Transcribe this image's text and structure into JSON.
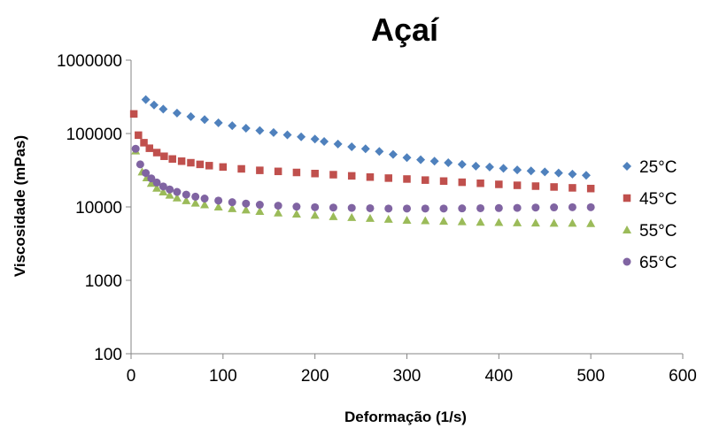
{
  "chart_data": {
    "type": "scatter",
    "title": "Açaí",
    "xlabel": "Deformação (1/s)",
    "ylabel": "Viscosidade (mPas)",
    "xlim": [
      0,
      600
    ],
    "ylim": [
      100,
      1000000
    ],
    "yscale": "log",
    "x_ticks": [
      0,
      100,
      200,
      300,
      400,
      500,
      600
    ],
    "x_tick_labels": [
      "0",
      "100",
      "200",
      "300",
      "400",
      "500",
      "600"
    ],
    "y_ticks": [
      100,
      1000,
      10000,
      100000,
      1000000
    ],
    "y_tick_labels": [
      "100",
      "1000",
      "10000",
      "100000",
      "1000000"
    ],
    "grid": false,
    "legend_position": "right",
    "series": [
      {
        "name": "25°C",
        "color": "#4F81BD",
        "marker": "diamond",
        "points": [
          [
            16,
            290000
          ],
          [
            25,
            245000
          ],
          [
            35,
            215000
          ],
          [
            50,
            190000
          ],
          [
            65,
            170000
          ],
          [
            80,
            155000
          ],
          [
            95,
            140000
          ],
          [
            110,
            128000
          ],
          [
            125,
            118000
          ],
          [
            140,
            110000
          ],
          [
            155,
            103000
          ],
          [
            170,
            96000
          ],
          [
            185,
            90000
          ],
          [
            200,
            84000
          ],
          [
            210,
            78000
          ],
          [
            225,
            72000
          ],
          [
            240,
            66000
          ],
          [
            255,
            62000
          ],
          [
            270,
            57000
          ],
          [
            285,
            52000
          ],
          [
            300,
            47000
          ],
          [
            315,
            44000
          ],
          [
            330,
            42000
          ],
          [
            345,
            40000
          ],
          [
            360,
            38000
          ],
          [
            375,
            36000
          ],
          [
            390,
            35000
          ],
          [
            405,
            33500
          ],
          [
            420,
            32000
          ],
          [
            435,
            31000
          ],
          [
            450,
            30000
          ],
          [
            465,
            29000
          ],
          [
            480,
            28000
          ],
          [
            495,
            27000
          ]
        ]
      },
      {
        "name": "45°C",
        "color": "#C0504D",
        "marker": "square",
        "points": [
          [
            3,
            185000
          ],
          [
            8,
            95000
          ],
          [
            14,
            75000
          ],
          [
            20,
            63000
          ],
          [
            28,
            55000
          ],
          [
            36,
            49000
          ],
          [
            45,
            45000
          ],
          [
            55,
            42000
          ],
          [
            65,
            40000
          ],
          [
            75,
            38000
          ],
          [
            85,
            36500
          ],
          [
            100,
            35000
          ],
          [
            120,
            33000
          ],
          [
            140,
            31500
          ],
          [
            160,
            30500
          ],
          [
            180,
            29500
          ],
          [
            200,
            28500
          ],
          [
            220,
            27500
          ],
          [
            240,
            26500
          ],
          [
            260,
            25500
          ],
          [
            280,
            24700
          ],
          [
            300,
            24000
          ],
          [
            320,
            23200
          ],
          [
            340,
            22500
          ],
          [
            360,
            21700
          ],
          [
            380,
            21000
          ],
          [
            400,
            20300
          ],
          [
            420,
            19700
          ],
          [
            440,
            19200
          ],
          [
            460,
            18700
          ],
          [
            480,
            18200
          ],
          [
            500,
            17800
          ]
        ]
      },
      {
        "name": "55°C",
        "color": "#9BBB59",
        "marker": "triangle",
        "points": [
          [
            5,
            58000
          ],
          [
            12,
            30000
          ],
          [
            17,
            25000
          ],
          [
            22,
            21000
          ],
          [
            28,
            18000
          ],
          [
            35,
            16000
          ],
          [
            42,
            14500
          ],
          [
            50,
            13300
          ],
          [
            60,
            12200
          ],
          [
            70,
            11300
          ],
          [
            80,
            10700
          ],
          [
            95,
            10000
          ],
          [
            110,
            9500
          ],
          [
            125,
            9100
          ],
          [
            140,
            8700
          ],
          [
            160,
            8300
          ],
          [
            180,
            8000
          ],
          [
            200,
            7700
          ],
          [
            220,
            7400
          ],
          [
            240,
            7200
          ],
          [
            260,
            7000
          ],
          [
            280,
            6800
          ],
          [
            300,
            6600
          ],
          [
            320,
            6500
          ],
          [
            340,
            6400
          ],
          [
            360,
            6300
          ],
          [
            380,
            6200
          ],
          [
            400,
            6150
          ],
          [
            420,
            6100
          ],
          [
            440,
            6050
          ],
          [
            460,
            6000
          ],
          [
            480,
            6000
          ],
          [
            500,
            5950
          ]
        ]
      },
      {
        "name": "65°C",
        "color": "#8064A2",
        "marker": "circle",
        "points": [
          [
            5,
            62000
          ],
          [
            10,
            38000
          ],
          [
            16,
            29000
          ],
          [
            22,
            24500
          ],
          [
            28,
            21500
          ],
          [
            35,
            19000
          ],
          [
            42,
            17300
          ],
          [
            50,
            16000
          ],
          [
            60,
            14700
          ],
          [
            70,
            13800
          ],
          [
            80,
            13000
          ],
          [
            95,
            12200
          ],
          [
            110,
            11600
          ],
          [
            125,
            11100
          ],
          [
            140,
            10700
          ],
          [
            160,
            10400
          ],
          [
            180,
            10100
          ],
          [
            200,
            9900
          ],
          [
            220,
            9800
          ],
          [
            240,
            9700
          ],
          [
            260,
            9600
          ],
          [
            280,
            9500
          ],
          [
            300,
            9500
          ],
          [
            320,
            9500
          ],
          [
            340,
            9500
          ],
          [
            360,
            9550
          ],
          [
            380,
            9600
          ],
          [
            400,
            9650
          ],
          [
            420,
            9700
          ],
          [
            440,
            9800
          ],
          [
            460,
            9850
          ],
          [
            480,
            9900
          ],
          [
            500,
            9900
          ]
        ]
      }
    ]
  }
}
